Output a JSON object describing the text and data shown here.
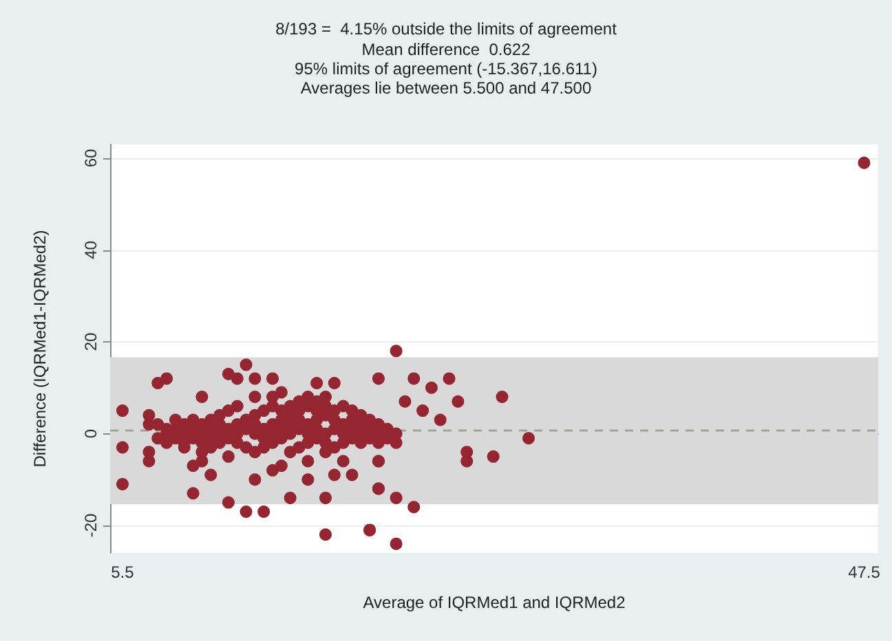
{
  "chart_data": {
    "type": "scatter",
    "title": "8/193 =  4.15% outside the limits of agreement",
    "subtitle": "Mean difference  0.622\n95% limits of agreement (-15.367,16.611)\nAverages lie between 5.500 and 47.500",
    "xlabel": "Average of IQRMed1 and IQRMed2",
    "ylabel": "Difference (IQRMed1-IQRMed2)",
    "xlim": [
      4.8,
      48.3
    ],
    "xticks": [
      5.5,
      47.5
    ],
    "ylim": [
      -26,
      63
    ],
    "yticks": [
      -20,
      0,
      20,
      40,
      60
    ],
    "grid": "y",
    "marker": "circle",
    "bands": [
      {
        "axis": "y",
        "from": -15.367,
        "to": 16.611,
        "color": "#d9d9d9"
      }
    ],
    "ref_lines": [
      {
        "axis": "y",
        "value": 0.622,
        "color": "#a3a392",
        "line_style": "dashed"
      }
    ],
    "series": [
      {
        "color": "#952530",
        "x": [
          5.5,
          5.5,
          5.5,
          7,
          7,
          7,
          7,
          7.5,
          8,
          10,
          9.5,
          9.5,
          10,
          10.5,
          11.5,
          12.5,
          12.5,
          13.5,
          13,
          11.5,
          12,
          13,
          14,
          14,
          14.5,
          15,
          17,
          17,
          19.5,
          16,
          17.5,
          18.5,
          20,
          20,
          20,
          16.5,
          17.5,
          21,
          22,
          24,
          23,
          21.5,
          24.5,
          22.5,
          23.5,
          27,
          28.5,
          25,
          25,
          26.5,
          21,
          20,
          20,
          21,
          22,
          19.5,
          21,
          47.5,
          7.5,
          7.5,
          8,
          8,
          8,
          8.5,
          8.5,
          8.5,
          9,
          9,
          9,
          9,
          9.5,
          9.5,
          9.5,
          10,
          10,
          10,
          10,
          10.5,
          10.5,
          10.5,
          10.5,
          11,
          11,
          11,
          11,
          11.5,
          11.5,
          11.5,
          11.5,
          12,
          12,
          12,
          12,
          12.5,
          12.5,
          12.5,
          13,
          13,
          13,
          13,
          13,
          13.5,
          13.5,
          13.5,
          13.5,
          14,
          14,
          14,
          14,
          14,
          14.5,
          14.5,
          14.5,
          14.5,
          14.5,
          15,
          15,
          15,
          15,
          15,
          15.5,
          15.5,
          15.5,
          15.5,
          15.5,
          16,
          16,
          16,
          16,
          16,
          16,
          16.5,
          16.5,
          16.5,
          16.5,
          16.5,
          17,
          17,
          17,
          17,
          17,
          17,
          17.5,
          17.5,
          17.5,
          17.5,
          18,
          18,
          18,
          18,
          18,
          18.5,
          18.5,
          18.5,
          18.5,
          19,
          19,
          19,
          19,
          19.5,
          19.5,
          19.5,
          20,
          20,
          20,
          20.5,
          20.5,
          21
        ],
        "values": [
          5,
          -3,
          -11,
          4,
          2,
          -4,
          -6,
          11,
          12,
          8,
          -13,
          -7,
          -6,
          -9,
          -15,
          15,
          -17,
          -17,
          -10,
          13,
          12,
          12,
          12,
          -8,
          -7,
          -14,
          -14,
          -22,
          -21,
          -10,
          -9,
          -9,
          12,
          -6,
          -12,
          11,
          11,
          18,
          12,
          12,
          10,
          7,
          7,
          5,
          3,
          8,
          -1,
          -4,
          -6,
          -5,
          -2,
          -6,
          -12,
          -14,
          -16,
          -21,
          -24,
          59,
          -1,
          2,
          0,
          1,
          -2,
          1,
          -1,
          3,
          0,
          -2,
          2,
          -3,
          1,
          -1,
          3,
          0,
          2,
          -2,
          -4,
          1,
          -1,
          3,
          -3,
          0,
          2,
          -2,
          4,
          1,
          -1,
          5,
          -5,
          0,
          2,
          -2,
          6,
          1,
          3,
          -3,
          0,
          2,
          4,
          -4,
          8,
          1,
          -1,
          5,
          -3,
          0,
          2,
          6,
          -2,
          8,
          1,
          3,
          5,
          -1,
          9,
          0,
          4,
          6,
          2,
          -4,
          1,
          5,
          7,
          -3,
          3,
          0,
          2,
          6,
          8,
          -2,
          -6,
          1,
          3,
          5,
          -1,
          7,
          0,
          4,
          6,
          -2,
          -4,
          8,
          1,
          3,
          -3,
          5,
          0,
          2,
          6,
          -2,
          -6,
          1,
          3,
          -1,
          5,
          0,
          2,
          -2,
          4,
          1,
          3,
          -1,
          0,
          2,
          -2,
          1,
          -1,
          0
        ]
      }
    ]
  }
}
